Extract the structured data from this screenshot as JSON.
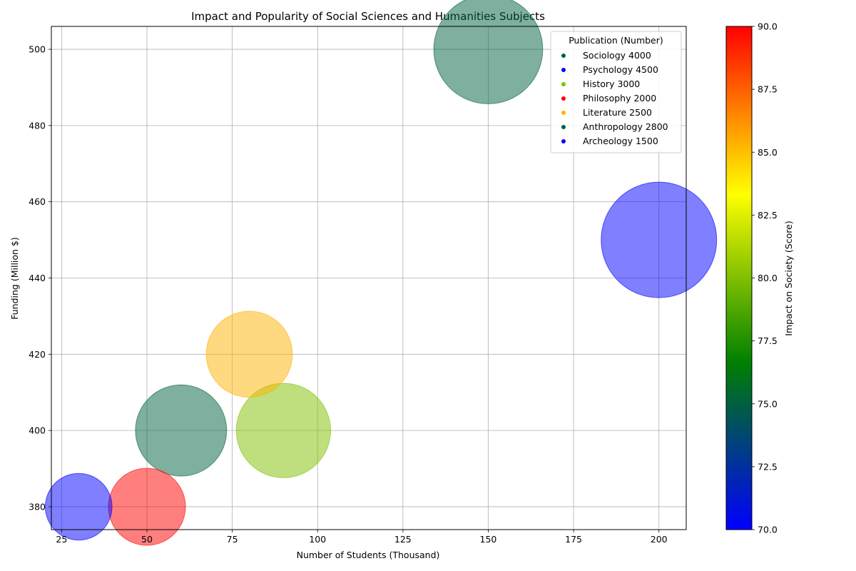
{
  "chart_data": {
    "type": "scatter",
    "title": "Impact and Popularity of Social Sciences and Humanities Subjects",
    "xlabel": "Number of Students (Thousand)",
    "ylabel": "Funding (Million $)",
    "xlim": [
      22,
      208
    ],
    "ylim": [
      374,
      506
    ],
    "xticks": [
      "25",
      "50",
      "75",
      "100",
      "125",
      "150",
      "175",
      "200"
    ],
    "yticks": [
      "380",
      "400",
      "420",
      "440",
      "460",
      "480",
      "500"
    ],
    "grid": true,
    "legend_title": "Publication (Number)",
    "legend_position": "top-right",
    "colorbar": {
      "label": "Impact on Society (Score)",
      "range": [
        70,
        90
      ],
      "ticks": [
        "70.0",
        "72.5",
        "75.0",
        "77.5",
        "80.0",
        "82.5",
        "85.0",
        "87.5",
        "90.0"
      ],
      "colors": [
        "#0000ff",
        "#008000",
        "#ffff00",
        "#ff0000"
      ]
    },
    "points": [
      {
        "subject": "Sociology",
        "students": 150,
        "funding": 500,
        "publications": 4000,
        "color": "#005f40",
        "legend": "Sociology 4000"
      },
      {
        "subject": "Psychology",
        "students": 200,
        "funding": 450,
        "publications": 4500,
        "color": "#0000ff",
        "legend": "Psychology 4500"
      },
      {
        "subject": "History",
        "students": 90,
        "funding": 400,
        "publications": 3000,
        "color": "#80c000",
        "legend": "History 3000"
      },
      {
        "subject": "Philosophy",
        "students": 50,
        "funding": 380,
        "publications": 2000,
        "color": "#ff0000",
        "legend": "Philosophy 2000"
      },
      {
        "subject": "Literature",
        "students": 80,
        "funding": 420,
        "publications": 2500,
        "color": "#ffb300",
        "legend": "Literature 2500"
      },
      {
        "subject": "Anthropology",
        "students": 60,
        "funding": 400,
        "publications": 2800,
        "color": "#005f40",
        "legend": "Anthropology 2800"
      },
      {
        "subject": "Archeology",
        "students": 30,
        "funding": 380,
        "publications": 1500,
        "color": "#0000ff",
        "legend": "Archeology 1500"
      }
    ]
  }
}
